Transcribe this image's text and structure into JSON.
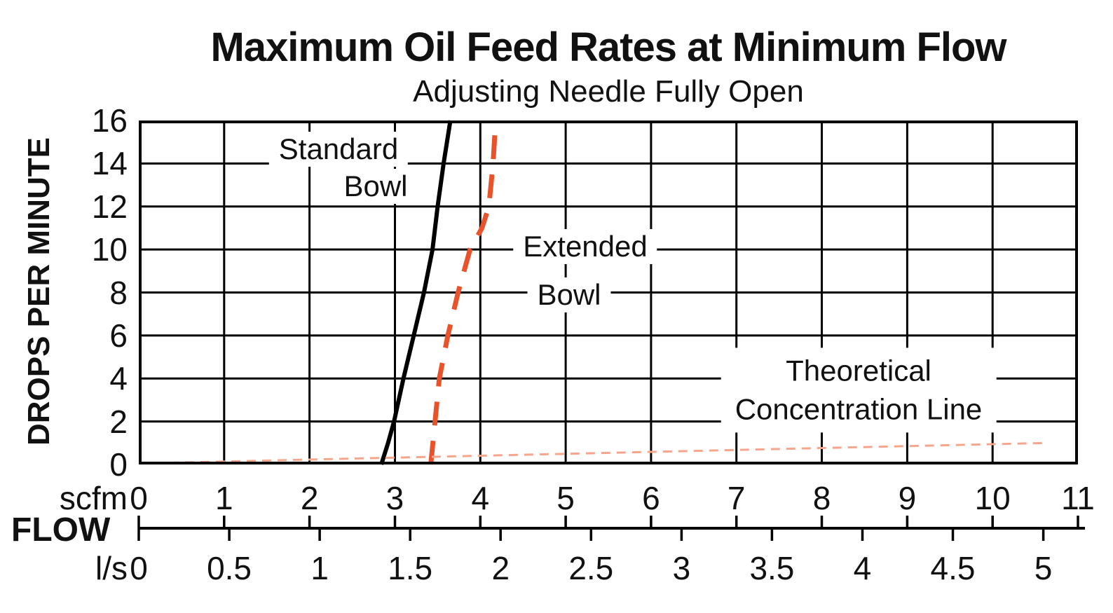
{
  "title": "Maximum Oil Feed Rates at Minimum Flow",
  "subtitle": "Adjusting Needle Fully Open",
  "axes": {
    "y": {
      "label": "DROPS PER MINUTE",
      "min": 0,
      "max": 16,
      "ticks": [
        0,
        2,
        4,
        6,
        8,
        10,
        12,
        14,
        16
      ]
    },
    "scfm": {
      "unit": "scfm",
      "min": 0,
      "max": 11,
      "ticks": [
        0,
        1,
        2,
        3,
        4,
        5,
        6,
        7,
        8,
        9,
        10,
        11
      ]
    },
    "ls": {
      "unit": "l/s",
      "ticks": [
        0,
        0.5,
        1,
        1.5,
        2,
        2.5,
        3,
        3.5,
        4,
        4.5,
        5
      ],
      "scfm_per_unit": 2.1189
    },
    "flow_label": "FLOW"
  },
  "annotations": {
    "standard_bowl": {
      "line1": "Standard",
      "line2": "Bowl"
    },
    "extended_bowl": {
      "line1": "Extended",
      "line2": "Bowl"
    },
    "theoretical": {
      "line1": "Theoretical",
      "line2": "Concentration Line"
    }
  },
  "colors": {
    "standard_bowl": "#000000",
    "extended_bowl": "#e8532c",
    "theoretical": "#f5a78d",
    "grid": "#000000",
    "frame": "#000000",
    "background": "#ffffff",
    "text": "#111111"
  },
  "chart_data": {
    "type": "line",
    "title": "Maximum Oil Feed Rates at Minimum Flow",
    "subtitle": "Adjusting Needle Fully Open",
    "ylabel": "DROPS PER MINUTE",
    "xlabel": "FLOW",
    "x_units": [
      "scfm",
      "l/s"
    ],
    "xlim_scfm": [
      0,
      11
    ],
    "ylim": [
      0,
      16
    ],
    "grid": true,
    "x_ticks_scfm": [
      0,
      1,
      2,
      3,
      4,
      5,
      6,
      7,
      8,
      9,
      10,
      11
    ],
    "x_ticks_ls": [
      0,
      0.5,
      1,
      1.5,
      2,
      2.5,
      3,
      3.5,
      4,
      4.5,
      5
    ],
    "ls_to_scfm": 2.1189,
    "legend_position": "inline-annotations",
    "series": [
      {
        "name": "Standard Bowl",
        "line_style": "solid",
        "color": "#000000",
        "points_scfm_drops": [
          [
            2.84,
            0
          ],
          [
            2.92,
            1
          ],
          [
            2.99,
            2
          ],
          [
            3.1,
            4
          ],
          [
            3.22,
            6
          ],
          [
            3.34,
            8
          ],
          [
            3.44,
            10
          ],
          [
            3.5,
            12
          ],
          [
            3.57,
            14
          ],
          [
            3.65,
            16
          ]
        ]
      },
      {
        "name": "Extended Bowl",
        "line_style": "dashed",
        "color": "#e8532c",
        "points_scfm_drops": [
          [
            3.42,
            0
          ],
          [
            3.47,
            2
          ],
          [
            3.52,
            4
          ],
          [
            3.62,
            6
          ],
          [
            3.74,
            8
          ],
          [
            3.88,
            10
          ],
          [
            4.02,
            11
          ],
          [
            4.1,
            12
          ],
          [
            4.15,
            14
          ],
          [
            4.18,
            16
          ]
        ]
      },
      {
        "name": "Theoretical Concentration Line",
        "line_style": "fine-dashed",
        "color": "#f5a78d",
        "points_scfm_drops": [
          [
            0,
            0.05
          ],
          [
            10.63,
            1.0
          ]
        ]
      }
    ]
  }
}
